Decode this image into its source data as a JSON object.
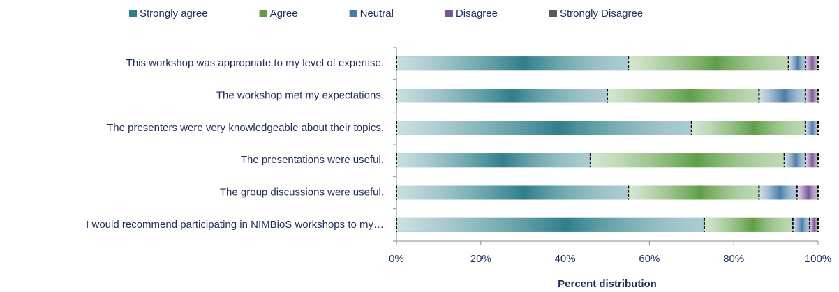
{
  "chart_data": {
    "type": "stacked_barh",
    "xlabel": "Percent distribution",
    "categories": [
      "This workshop was appropriate to my level of expertise.",
      "The workshop met my expectations.",
      "The presenters were very knowledgeable about their topics.",
      "The presentations were useful.",
      "The group discussions were useful.",
      "I would recommend participating in NIMBioS workshops to my…"
    ],
    "series": [
      {
        "name": "Strongly agree",
        "color": "#2f7f8b",
        "values": [
          55,
          50,
          70,
          46,
          55,
          73
        ]
      },
      {
        "name": "Agree",
        "color": "#5f9e48",
        "values": [
          38,
          36,
          27,
          46,
          31,
          21
        ]
      },
      {
        "name": "Neutral",
        "color": "#4a7ca6",
        "values": [
          4,
          11,
          3,
          5,
          9,
          4
        ]
      },
      {
        "name": "Disagree",
        "color": "#7a5594",
        "values": [
          3,
          3,
          0,
          3,
          5,
          2
        ]
      },
      {
        "name": "Strongly Disagree",
        "color": "#5a5a5a",
        "values": [
          0,
          0,
          0,
          0,
          0,
          0
        ]
      }
    ],
    "xlim": [
      0,
      100
    ],
    "xticks": [
      {
        "value": 0,
        "label": "0%"
      },
      {
        "value": 20,
        "label": "20%"
      },
      {
        "value": 40,
        "label": "40%"
      },
      {
        "value": 60,
        "label": "60%"
      },
      {
        "value": 80,
        "label": "80%"
      },
      {
        "value": 100,
        "label": "100%"
      }
    ],
    "legend": "top"
  }
}
